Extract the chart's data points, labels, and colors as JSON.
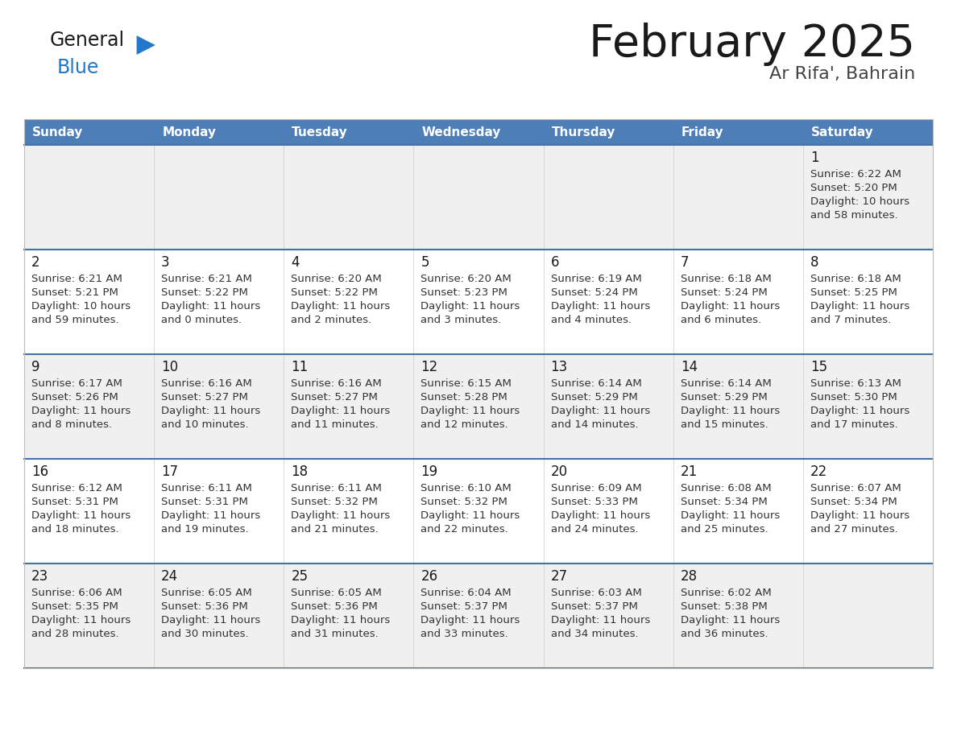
{
  "title": "February 2025",
  "subtitle": "Ar Rifa', Bahrain",
  "header_bg": "#4E7EB8",
  "header_text_color": "#FFFFFF",
  "row_bg_light": "#F0F0F0",
  "row_bg_white": "#FFFFFF",
  "separator_color": "#4472A8",
  "cell_border_color": "#CCCCCC",
  "day_text_color": "#1a1a1a",
  "info_text_color": "#333333",
  "days_of_week": [
    "Sunday",
    "Monday",
    "Tuesday",
    "Wednesday",
    "Thursday",
    "Friday",
    "Saturday"
  ],
  "logo_general_color": "#1a1a1a",
  "logo_blue_color": "#2277CC",
  "calendar": [
    [
      {
        "day": null,
        "sunrise": null,
        "sunset": null,
        "daylight": null
      },
      {
        "day": null,
        "sunrise": null,
        "sunset": null,
        "daylight": null
      },
      {
        "day": null,
        "sunrise": null,
        "sunset": null,
        "daylight": null
      },
      {
        "day": null,
        "sunrise": null,
        "sunset": null,
        "daylight": null
      },
      {
        "day": null,
        "sunrise": null,
        "sunset": null,
        "daylight": null
      },
      {
        "day": null,
        "sunrise": null,
        "sunset": null,
        "daylight": null
      },
      {
        "day": 1,
        "sunrise": "6:22 AM",
        "sunset": "5:20 PM",
        "daylight_h": "10 hours",
        "daylight_m": "and 58 minutes."
      }
    ],
    [
      {
        "day": 2,
        "sunrise": "6:21 AM",
        "sunset": "5:21 PM",
        "daylight_h": "10 hours",
        "daylight_m": "and 59 minutes."
      },
      {
        "day": 3,
        "sunrise": "6:21 AM",
        "sunset": "5:22 PM",
        "daylight_h": "11 hours",
        "daylight_m": "and 0 minutes."
      },
      {
        "day": 4,
        "sunrise": "6:20 AM",
        "sunset": "5:22 PM",
        "daylight_h": "11 hours",
        "daylight_m": "and 2 minutes."
      },
      {
        "day": 5,
        "sunrise": "6:20 AM",
        "sunset": "5:23 PM",
        "daylight_h": "11 hours",
        "daylight_m": "and 3 minutes."
      },
      {
        "day": 6,
        "sunrise": "6:19 AM",
        "sunset": "5:24 PM",
        "daylight_h": "11 hours",
        "daylight_m": "and 4 minutes."
      },
      {
        "day": 7,
        "sunrise": "6:18 AM",
        "sunset": "5:24 PM",
        "daylight_h": "11 hours",
        "daylight_m": "and 6 minutes."
      },
      {
        "day": 8,
        "sunrise": "6:18 AM",
        "sunset": "5:25 PM",
        "daylight_h": "11 hours",
        "daylight_m": "and 7 minutes."
      }
    ],
    [
      {
        "day": 9,
        "sunrise": "6:17 AM",
        "sunset": "5:26 PM",
        "daylight_h": "11 hours",
        "daylight_m": "and 8 minutes."
      },
      {
        "day": 10,
        "sunrise": "6:16 AM",
        "sunset": "5:27 PM",
        "daylight_h": "11 hours",
        "daylight_m": "and 10 minutes."
      },
      {
        "day": 11,
        "sunrise": "6:16 AM",
        "sunset": "5:27 PM",
        "daylight_h": "11 hours",
        "daylight_m": "and 11 minutes."
      },
      {
        "day": 12,
        "sunrise": "6:15 AM",
        "sunset": "5:28 PM",
        "daylight_h": "11 hours",
        "daylight_m": "and 12 minutes."
      },
      {
        "day": 13,
        "sunrise": "6:14 AM",
        "sunset": "5:29 PM",
        "daylight_h": "11 hours",
        "daylight_m": "and 14 minutes."
      },
      {
        "day": 14,
        "sunrise": "6:14 AM",
        "sunset": "5:29 PM",
        "daylight_h": "11 hours",
        "daylight_m": "and 15 minutes."
      },
      {
        "day": 15,
        "sunrise": "6:13 AM",
        "sunset": "5:30 PM",
        "daylight_h": "11 hours",
        "daylight_m": "and 17 minutes."
      }
    ],
    [
      {
        "day": 16,
        "sunrise": "6:12 AM",
        "sunset": "5:31 PM",
        "daylight_h": "11 hours",
        "daylight_m": "and 18 minutes."
      },
      {
        "day": 17,
        "sunrise": "6:11 AM",
        "sunset": "5:31 PM",
        "daylight_h": "11 hours",
        "daylight_m": "and 19 minutes."
      },
      {
        "day": 18,
        "sunrise": "6:11 AM",
        "sunset": "5:32 PM",
        "daylight_h": "11 hours",
        "daylight_m": "and 21 minutes."
      },
      {
        "day": 19,
        "sunrise": "6:10 AM",
        "sunset": "5:32 PM",
        "daylight_h": "11 hours",
        "daylight_m": "and 22 minutes."
      },
      {
        "day": 20,
        "sunrise": "6:09 AM",
        "sunset": "5:33 PM",
        "daylight_h": "11 hours",
        "daylight_m": "and 24 minutes."
      },
      {
        "day": 21,
        "sunrise": "6:08 AM",
        "sunset": "5:34 PM",
        "daylight_h": "11 hours",
        "daylight_m": "and 25 minutes."
      },
      {
        "day": 22,
        "sunrise": "6:07 AM",
        "sunset": "5:34 PM",
        "daylight_h": "11 hours",
        "daylight_m": "and 27 minutes."
      }
    ],
    [
      {
        "day": 23,
        "sunrise": "6:06 AM",
        "sunset": "5:35 PM",
        "daylight_h": "11 hours",
        "daylight_m": "and 28 minutes."
      },
      {
        "day": 24,
        "sunrise": "6:05 AM",
        "sunset": "5:36 PM",
        "daylight_h": "11 hours",
        "daylight_m": "and 30 minutes."
      },
      {
        "day": 25,
        "sunrise": "6:05 AM",
        "sunset": "5:36 PM",
        "daylight_h": "11 hours",
        "daylight_m": "and 31 minutes."
      },
      {
        "day": 26,
        "sunrise": "6:04 AM",
        "sunset": "5:37 PM",
        "daylight_h": "11 hours",
        "daylight_m": "and 33 minutes."
      },
      {
        "day": 27,
        "sunrise": "6:03 AM",
        "sunset": "5:37 PM",
        "daylight_h": "11 hours",
        "daylight_m": "and 34 minutes."
      },
      {
        "day": 28,
        "sunrise": "6:02 AM",
        "sunset": "5:38 PM",
        "daylight_h": "11 hours",
        "daylight_m": "and 36 minutes."
      },
      {
        "day": null,
        "sunrise": null,
        "sunset": null,
        "daylight_h": null,
        "daylight_m": null
      }
    ]
  ]
}
